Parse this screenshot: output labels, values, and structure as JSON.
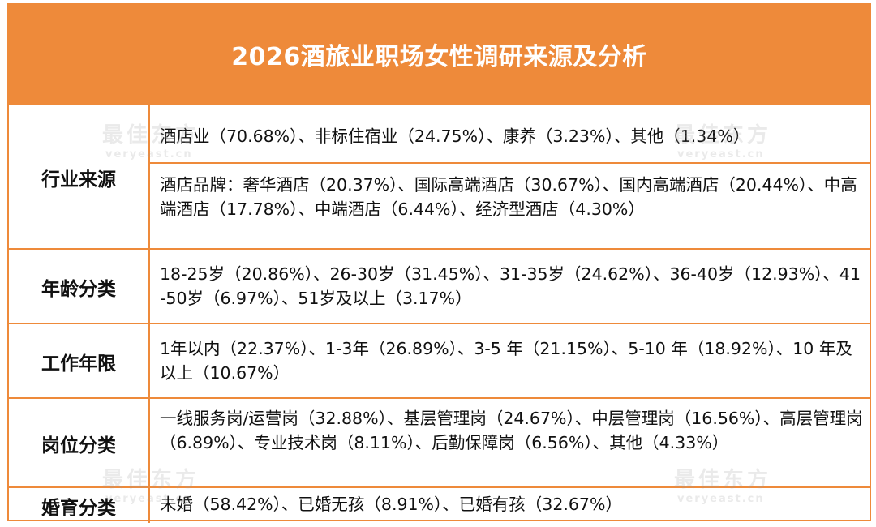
{
  "title": "2026酒旅业职场女性调研来源及分析",
  "accent_color": "#ee8a3a",
  "watermark": {
    "brand_cn": "最佳东方",
    "brand_en": "veryeast.cn"
  },
  "rows": [
    {
      "label": "行业来源",
      "lines": [
        "酒店业（70.68%）、非标住宿业（24.75%）、康养（3.23%）、其他（1.34%）",
        "酒店品牌：奢华酒店（20.37%）、国际高端酒店（30.67%）、国内高端酒店（20.44%）、中高端酒店（17.78%）、中端酒店（6.44%）、经济型酒店（4.30%）"
      ]
    },
    {
      "label": "年龄分类",
      "lines": [
        "18-25岁（20.86%）、26-30岁（31.45%）、31-35岁（24.62%）、36-40岁（12.93%）、41-50岁（6.97%）、51岁及以上（3.17%）"
      ]
    },
    {
      "label": "工作年限",
      "lines": [
        "1年以内（22.37%）、1-3年（26.89%）、3-5 年（21.15%）、5-10 年（18.92%）、10 年及以上（10.67%）"
      ]
    },
    {
      "label": "岗位分类",
      "lines": [
        "一线服务岗/运营岗（32.88%）、基层管理岗（24.67%）、中层管理岗（16.56%）、高层管理岗（6.89%）、专业技术岗（8.11%）、后勤保障岗（6.56%）、其他（4.33%）"
      ]
    },
    {
      "label": "婚育分类",
      "lines": [
        "未婚（58.42%）、已婚无孩（8.91%）、已婚有孩（32.67%）"
      ]
    }
  ]
}
